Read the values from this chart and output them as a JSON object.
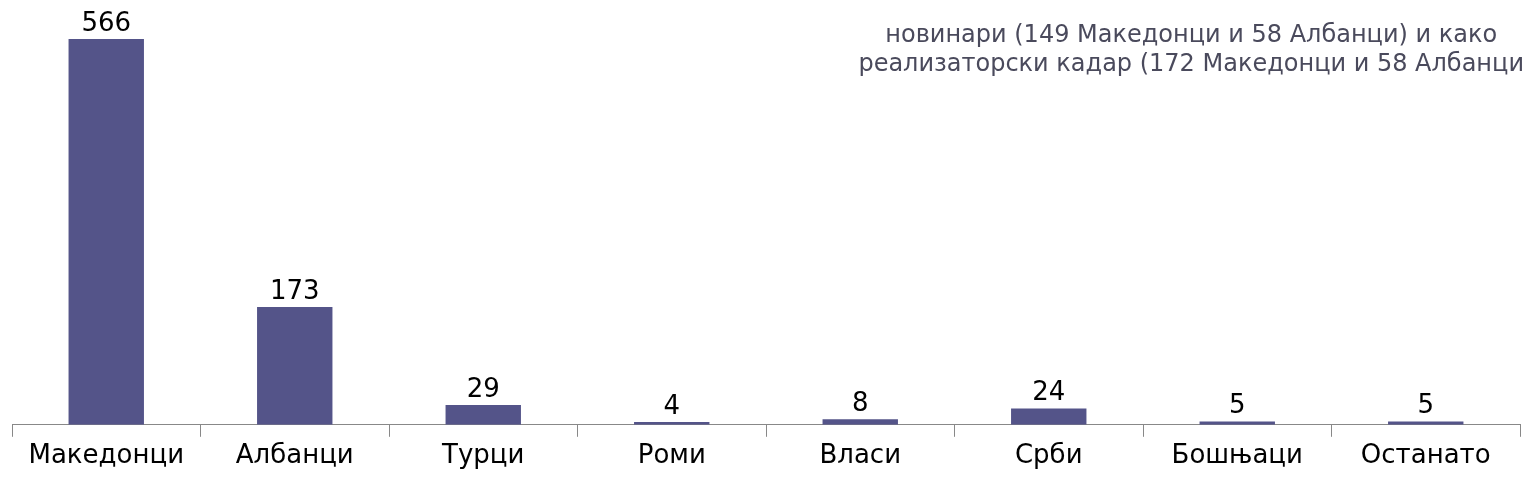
{
  "chart_data": {
    "type": "bar",
    "categories": [
      "Македонци",
      "Албанци",
      "Турци",
      "Роми",
      "Власи",
      "Срби",
      "Бошњаци",
      "Останато"
    ],
    "values": [
      566,
      173,
      29,
      4,
      8,
      24,
      5,
      5
    ],
    "color": "#545489",
    "data_labels": true,
    "grid": false,
    "legend": false,
    "annotations": [
      "новинари (149 Македонци и 58 Албанци) и како",
      "реализаторски кадар (172 Македонци и 58 Албанци"
    ]
  }
}
